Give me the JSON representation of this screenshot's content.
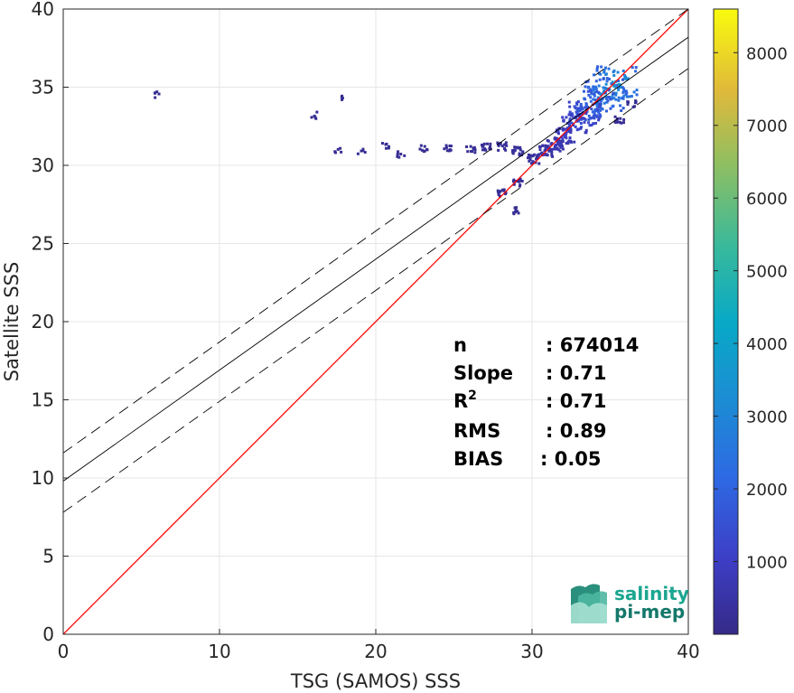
{
  "chart_data": {
    "type": "heatmap",
    "xlabel": "TSG (SAMOS) SSS",
    "ylabel": "Satellite SSS",
    "xlim": [
      0,
      40
    ],
    "ylim": [
      0,
      40
    ],
    "xticks": [
      0,
      10,
      20,
      30,
      40
    ],
    "yticks": [
      0,
      5,
      10,
      15,
      20,
      25,
      30,
      35,
      40
    ],
    "grid": true,
    "colorbar": {
      "colormap": "parula",
      "range": [
        0,
        8600
      ],
      "ticks": [
        1000,
        2000,
        3000,
        4000,
        5000,
        6000,
        7000,
        8000
      ]
    },
    "lines": [
      {
        "name": "1:1",
        "slope": 1.0,
        "intercept": 0,
        "style": "solid",
        "color": "#ff0000"
      },
      {
        "name": "fit",
        "slope": 0.71,
        "intercept": 9.8,
        "style": "solid",
        "color": "#000000"
      },
      {
        "name": "fit+2std",
        "slope": 0.71,
        "intercept": 11.6,
        "style": "dashed",
        "color": "#000000"
      },
      {
        "name": "fit-2std",
        "slope": 0.71,
        "intercept": 7.8,
        "style": "dashed",
        "color": "#000000"
      }
    ],
    "density": [
      {
        "x": 35.3,
        "y": 35.3,
        "count": 3800
      },
      {
        "x": 34.6,
        "y": 34.6,
        "count": 3000
      },
      {
        "x": 34.0,
        "y": 34.0,
        "count": 2400
      },
      {
        "x": 33.3,
        "y": 33.4,
        "count": 1900
      },
      {
        "x": 32.6,
        "y": 32.8,
        "count": 1400
      },
      {
        "x": 32.0,
        "y": 32.0,
        "count": 1000
      },
      {
        "x": 31.4,
        "y": 31.4,
        "count": 700
      },
      {
        "x": 30.8,
        "y": 31.0,
        "count": 500
      },
      {
        "x": 30.0,
        "y": 30.5,
        "count": 300
      },
      {
        "x": 29.0,
        "y": 31.0,
        "count": 200
      },
      {
        "x": 28.0,
        "y": 31.3,
        "count": 150
      },
      {
        "x": 27.0,
        "y": 31.3,
        "count": 120
      },
      {
        "x": 26.0,
        "y": 31.1,
        "count": 90
      },
      {
        "x": 24.5,
        "y": 31.2,
        "count": 60
      },
      {
        "x": 23.0,
        "y": 31.2,
        "count": 40
      },
      {
        "x": 21.5,
        "y": 30.8,
        "count": 30
      },
      {
        "x": 20.5,
        "y": 31.3,
        "count": 25
      },
      {
        "x": 19.0,
        "y": 31.0,
        "count": 20
      },
      {
        "x": 17.5,
        "y": 31.1,
        "count": 15
      },
      {
        "x": 16.0,
        "y": 33.3,
        "count": 20
      },
      {
        "x": 5.8,
        "y": 34.6,
        "count": 20
      },
      {
        "x": 17.6,
        "y": 34.5,
        "count": 10
      },
      {
        "x": 29.0,
        "y": 29.0,
        "count": 120
      },
      {
        "x": 28.0,
        "y": 28.3,
        "count": 80
      },
      {
        "x": 29.0,
        "y": 27.2,
        "count": 40
      },
      {
        "x": 35.5,
        "y": 33.0,
        "count": 120
      },
      {
        "x": 36.3,
        "y": 34.0,
        "count": 60
      }
    ]
  },
  "stats": [
    {
      "label": "n",
      "value": ": 674014"
    },
    {
      "label": "Slope",
      "value": ": 0.71"
    },
    {
      "label": "R",
      "sup": "2",
      "value": ": 0.71"
    },
    {
      "label": "RMS",
      "value": ": 0.89"
    },
    {
      "label": "BIAS",
      "value": ": 0.05"
    }
  ],
  "logo": {
    "line1": "salinity",
    "line2": "pi-mep"
  },
  "colors": {
    "identity": "#ff0000",
    "fit": "#000000",
    "grid": "#e6e6e6",
    "logo": "#1aa58f"
  }
}
